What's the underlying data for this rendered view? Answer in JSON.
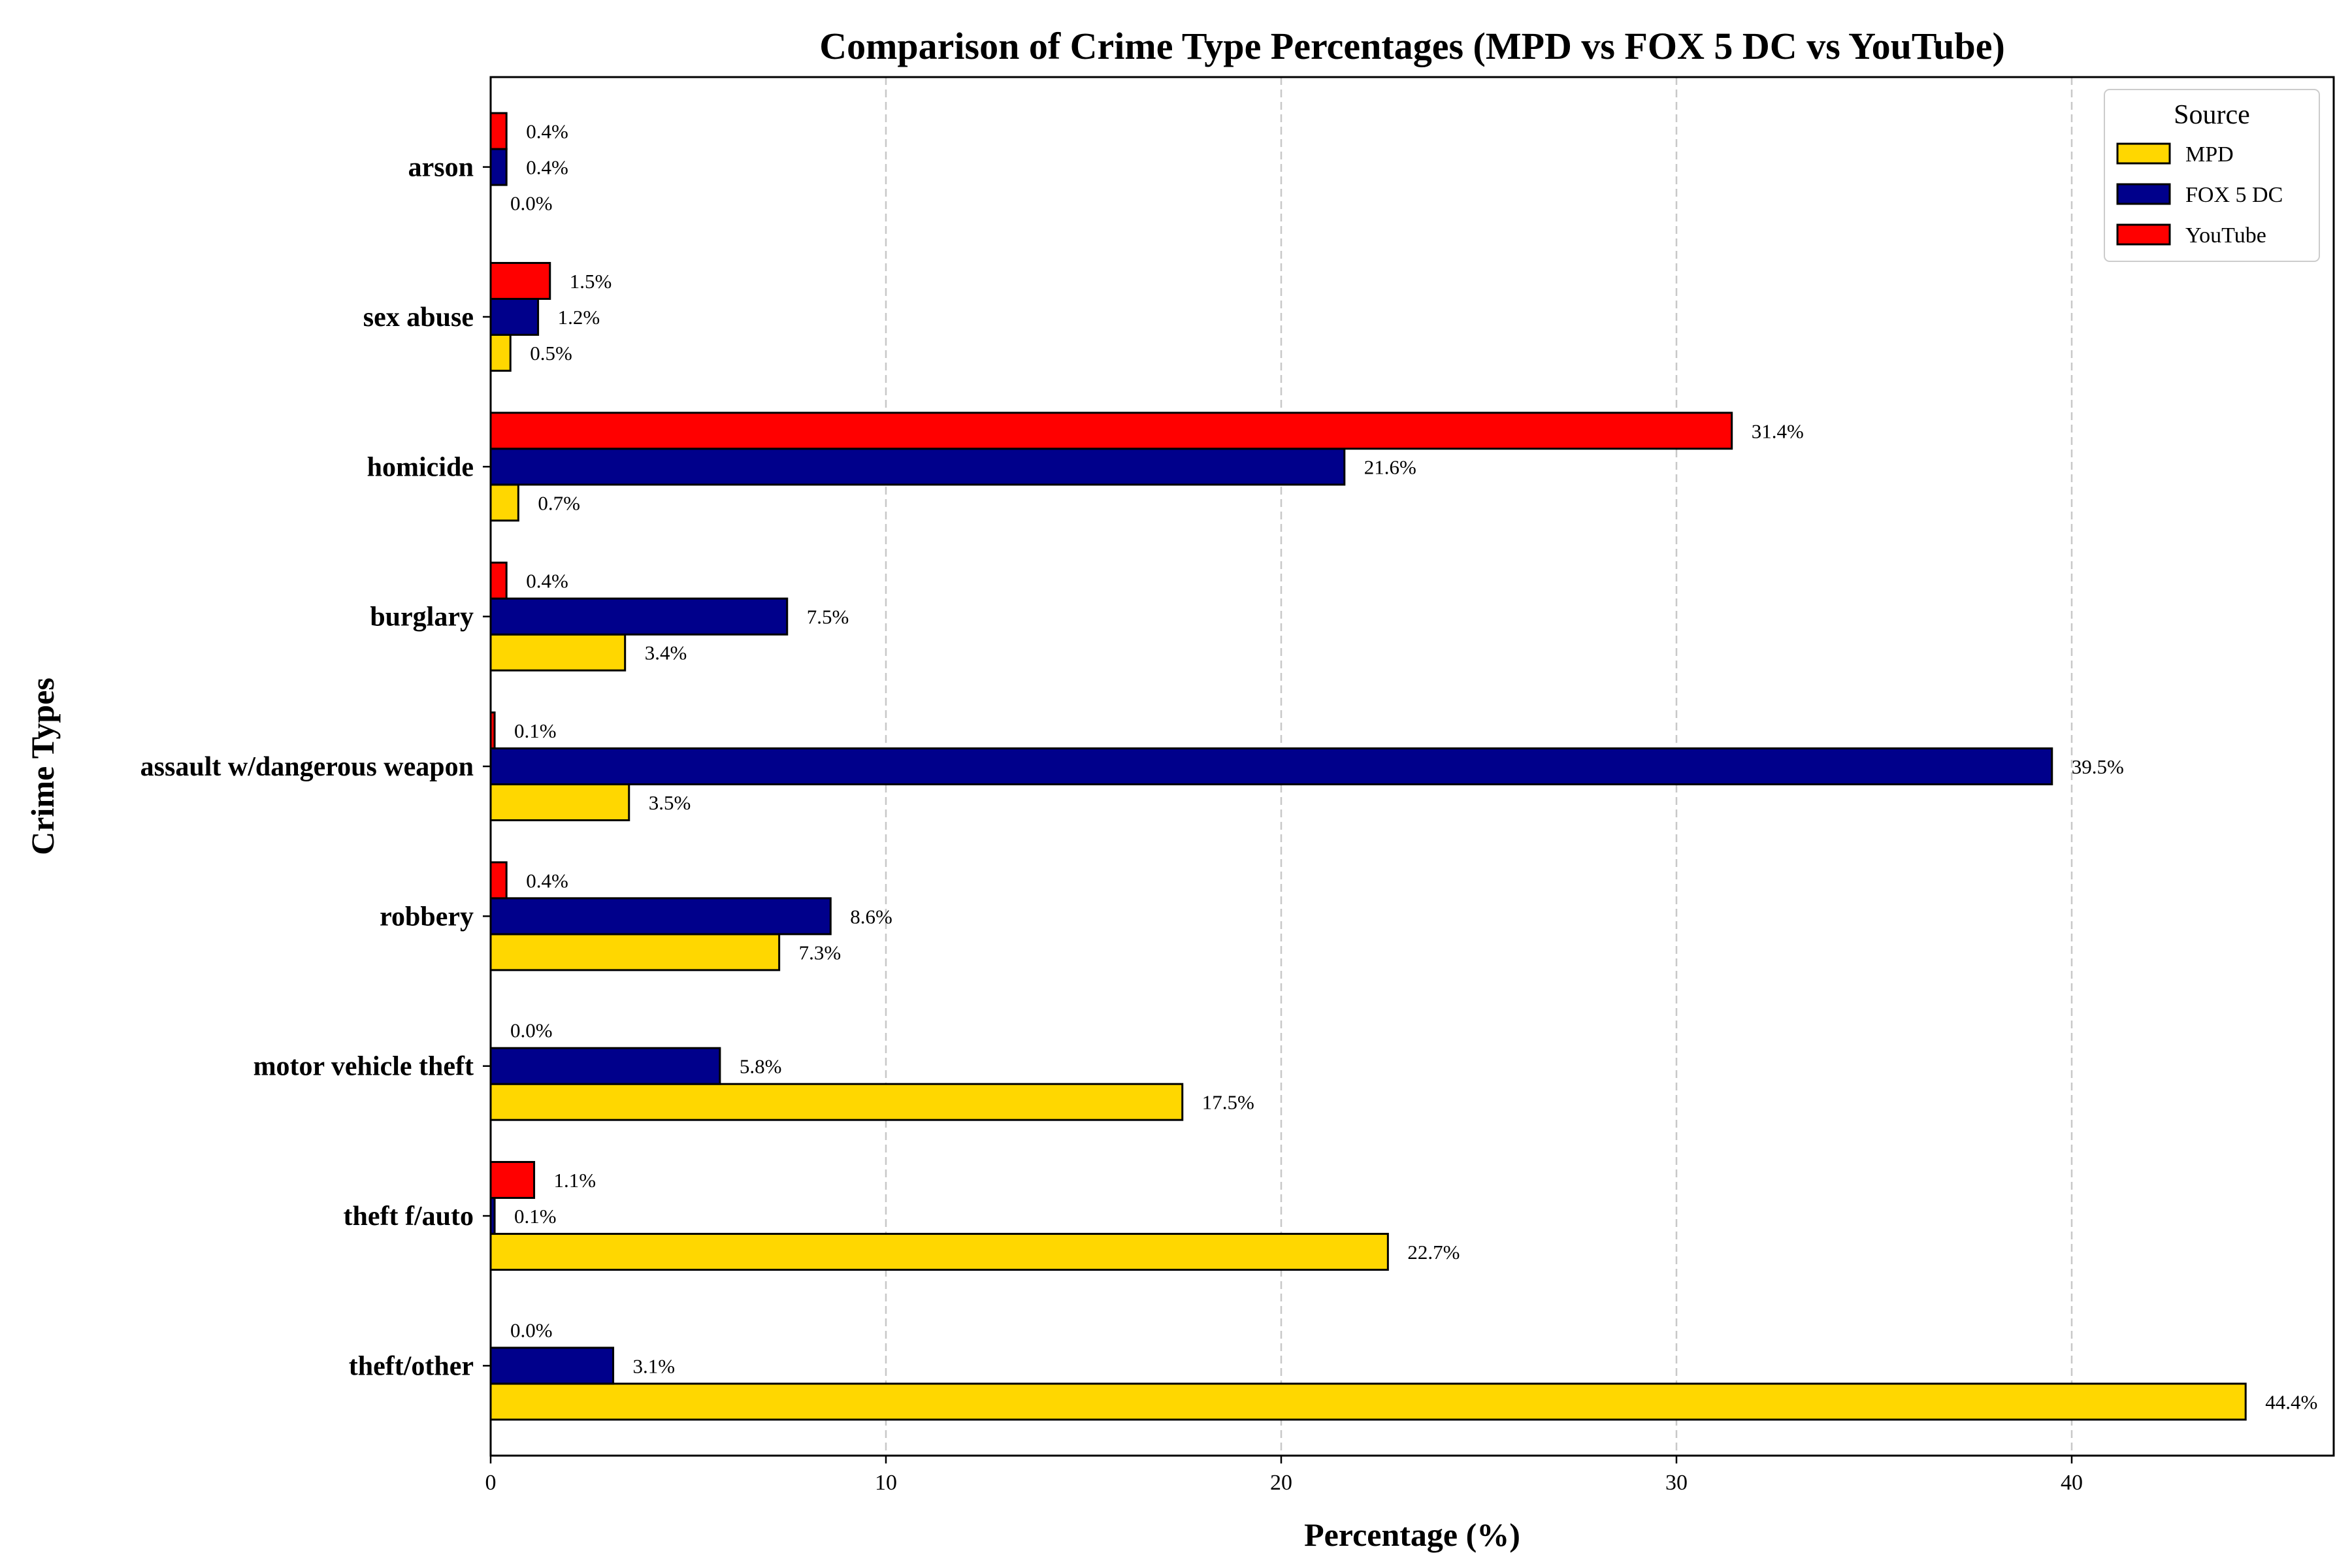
{
  "chart_data": {
    "type": "bar",
    "orientation": "horizontal",
    "title": "Comparison of Crime Type Percentages (MPD vs FOX 5 DC vs YouTube)",
    "xlabel": "Percentage (%)",
    "ylabel": "Crime Types",
    "xlim": [
      0,
      46.6
    ],
    "xticks": [
      0,
      10,
      20,
      30,
      40
    ],
    "grid": "x-dashed",
    "legend_title": "Source",
    "legend_position": "top-right",
    "categories": [
      "arson",
      "sex abuse",
      "homicide",
      "burglary",
      "assault w/dangerous weapon",
      "robbery",
      "motor vehicle theft",
      "theft f/auto",
      "theft/other"
    ],
    "series": [
      {
        "name": "MPD",
        "color": "#FFD700",
        "values": [
          0.0,
          0.5,
          0.7,
          3.4,
          3.5,
          7.3,
          17.5,
          22.7,
          44.4
        ]
      },
      {
        "name": "FOX 5 DC",
        "color": "#00008B",
        "values": [
          0.4,
          1.2,
          21.6,
          7.5,
          39.5,
          8.6,
          5.8,
          0.1,
          3.1
        ]
      },
      {
        "name": "YouTube",
        "color": "#FF0000",
        "values": [
          0.4,
          1.5,
          31.4,
          0.4,
          0.1,
          0.4,
          0.0,
          1.1,
          0.0
        ]
      }
    ]
  }
}
